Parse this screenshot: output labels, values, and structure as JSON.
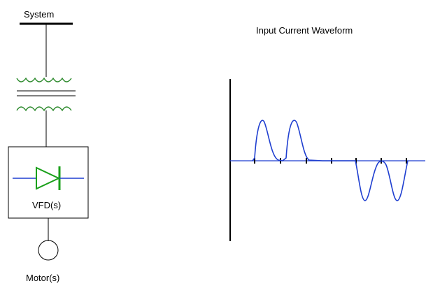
{
  "diagram": {
    "system_label": "System",
    "vfd_label": "VFD(s)",
    "motor_label": "Motor(s)",
    "waveform_title": "Input Current Waveform"
  },
  "colors": {
    "line": "#000000",
    "transformer": "#2e8b2e",
    "diode": "#1aa01a",
    "diode_leads": "#1f3fd0",
    "waveform": "#1f3fd0",
    "axis": "#000000"
  }
}
